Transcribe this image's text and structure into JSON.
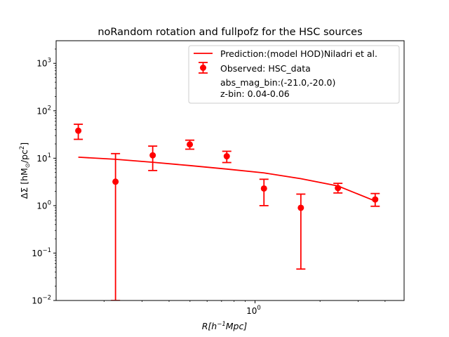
{
  "chart_data": {
    "type": "scatter",
    "title": "noRandom rotation and fullpofz for the HSC sources",
    "xlabel": {
      "base": "R[h",
      "sup": "−1",
      "rest": "Mpc]"
    },
    "ylabel": {
      "pre": "ΔΣ [hM",
      "sub": "⊙",
      "mid": "/pc",
      "sup": "2",
      "post": "]"
    },
    "x_scale": "log",
    "y_scale": "log",
    "xlim": [
      0.12,
      4.9
    ],
    "ylim": [
      0.01,
      3000
    ],
    "x_tick_labels": [
      {
        "value": 1,
        "base": "10",
        "exp": "0"
      }
    ],
    "y_tick_labels": [
      {
        "value": 0.01,
        "base": "10",
        "exp": "−2"
      },
      {
        "value": 0.1,
        "base": "10",
        "exp": "−1"
      },
      {
        "value": 1,
        "base": "10",
        "exp": "0"
      },
      {
        "value": 10,
        "base": "10",
        "exp": "1"
      },
      {
        "value": 100,
        "base": "10",
        "exp": "2"
      },
      {
        "value": 1000,
        "base": "10",
        "exp": "3"
      }
    ],
    "color": "#ff0000",
    "series": [
      {
        "name": "Prediction:(model HOD)Niladri et al.",
        "kind": "line",
        "x": [
          0.152,
          0.226,
          0.336,
          0.499,
          0.74,
          1.1,
          1.63,
          2.42,
          3.6
        ],
        "y": [
          10.5,
          9.5,
          8.2,
          7.0,
          5.9,
          4.9,
          3.7,
          2.6,
          1.25
        ]
      },
      {
        "name": "Observed: HSC_data",
        "kind": "errorbar",
        "x": [
          0.152,
          0.226,
          0.336,
          0.499,
          0.74,
          1.1,
          1.63,
          2.42,
          3.6
        ],
        "y": [
          38,
          3.2,
          11.5,
          19.5,
          11,
          2.3,
          0.9,
          2.35,
          1.35
        ],
        "yerr_low": [
          25,
          0.01,
          5.5,
          15.5,
          8.1,
          1.0,
          0.046,
          1.85,
          0.97
        ],
        "yerr_high": [
          52,
          12.5,
          18,
          24,
          14,
          3.6,
          1.75,
          2.95,
          1.8
        ]
      }
    ],
    "annotations": [
      "abs_mag_bin:(-21.0,-20.0)",
      "z-bin: 0.04-0.06"
    ],
    "legend_position": "top-right",
    "grid": false
  }
}
